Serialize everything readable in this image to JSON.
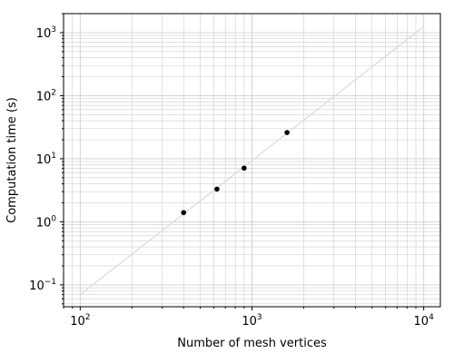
{
  "chart_data": {
    "type": "scatter",
    "title": "",
    "xlabel": "Number of mesh vertices",
    "ylabel": "Computation time (s)",
    "x_scale": "log",
    "y_scale": "log",
    "xlim": [
      80,
      12500
    ],
    "ylim": [
      0.045,
      2000
    ],
    "grid": "major and minor, both axes",
    "legend": "none",
    "x_ticks": [
      {
        "value": 100,
        "base": "10",
        "exp": "2"
      },
      {
        "value": 1000,
        "base": "10",
        "exp": "3"
      },
      {
        "value": 10000,
        "base": "10",
        "exp": "4"
      }
    ],
    "y_ticks": [
      {
        "value": 0.1,
        "base": "10",
        "exp": "−1"
      },
      {
        "value": 1,
        "base": "10",
        "exp": "0"
      },
      {
        "value": 10,
        "base": "10",
        "exp": "1"
      },
      {
        "value": 100,
        "base": "10",
        "exp": "2"
      },
      {
        "value": 1000,
        "base": "10",
        "exp": "3"
      }
    ],
    "series": [
      {
        "type": "scatter",
        "x": [
          400,
          625,
          900,
          1600
        ],
        "y": [
          1.4,
          3.3,
          7.1,
          26
        ],
        "color": "#000000"
      },
      {
        "type": "line",
        "x": [
          100,
          10000
        ],
        "y": [
          0.07,
          1250
        ],
        "color": "#dcdcdc"
      }
    ]
  }
}
